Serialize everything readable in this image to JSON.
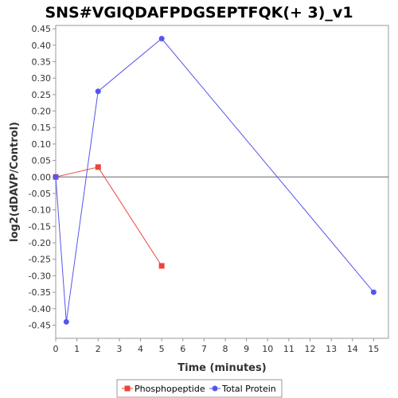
{
  "chart_data": {
    "type": "line",
    "title": "SNS#VGIQDAFPDGSEPTFQK(+ 3)_v1",
    "xlabel": "Time (minutes)",
    "ylabel": "log2(dDAVP/Control)",
    "xlim": [
      0,
      15.7
    ],
    "ylim": [
      -0.49,
      0.46
    ],
    "xticks": [
      0,
      1,
      2,
      3,
      4,
      5,
      6,
      7,
      8,
      9,
      10,
      11,
      12,
      13,
      14,
      15
    ],
    "yticks": [
      0.45,
      0.4,
      0.35,
      0.3,
      0.25,
      0.2,
      0.15,
      0.1,
      0.05,
      0.0,
      -0.05,
      -0.1,
      -0.15,
      -0.2,
      -0.25,
      -0.3,
      -0.35,
      -0.4,
      -0.45
    ],
    "zero_line": true,
    "grid": false,
    "legend_position": "bottom",
    "series": [
      {
        "name": "Phosphopeptide",
        "color": "#e8453c",
        "marker": "square",
        "x": [
          0,
          2,
          5
        ],
        "y": [
          0.0,
          0.03,
          -0.27
        ]
      },
      {
        "name": "Total Protein",
        "color": "#5555ee",
        "marker": "circle",
        "x": [
          0,
          0.5,
          2,
          5,
          15
        ],
        "y": [
          0.0,
          -0.44,
          0.26,
          0.42,
          -0.35
        ]
      }
    ]
  }
}
